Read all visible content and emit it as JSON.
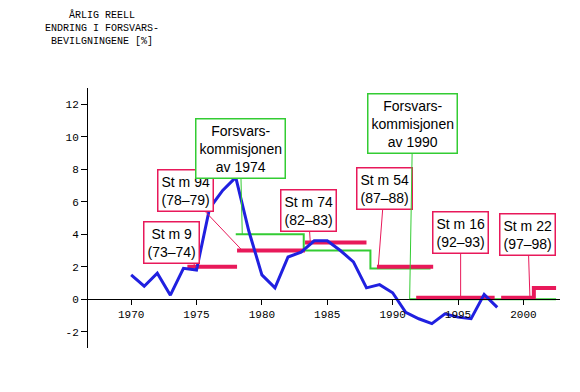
{
  "chart_data": {
    "type": "line",
    "y_label": [
      "ÅRLIG REELL",
      "ENDRING I FORSVARS-",
      "BEVILGNINGENE [%]"
    ],
    "xlim": [
      1966.7,
      2002.8
    ],
    "xticks": [
      1970,
      1975,
      1980,
      1985,
      1990,
      1995,
      2000
    ],
    "ylim": [
      -3,
      13
    ],
    "yticks": [
      -2,
      0,
      2,
      4,
      6,
      8,
      10,
      12
    ],
    "grid": false,
    "series": [
      {
        "color": "#33cc33",
        "line_style": "solid",
        "x": [
          1978,
          1983.2,
          1983.2,
          1988.3,
          1988.3,
          1992.9,
          null,
          1991.3,
          2002.5
        ],
        "values": [
          4.0,
          4.0,
          3.0,
          3.0,
          1.9,
          1.9,
          null,
          0.0,
          0.0
        ]
      },
      {
        "color": "#e8195a",
        "line_style": "solid",
        "x": [
          1974.3,
          1978.1,
          null,
          1978.1,
          1983.3,
          null,
          1983.3,
          1988.0,
          null,
          1988.8,
          1993.1,
          null,
          1991.8,
          1997.8,
          null,
          1998.3,
          2000.8,
          2000.8,
          2002.5
        ],
        "values": [
          2.0,
          2.0,
          null,
          3.0,
          3.0,
          null,
          3.5,
          3.5,
          null,
          2.0,
          2.0,
          null,
          0.1,
          0.1,
          null,
          0.1,
          0.1,
          0.7,
          0.7
        ]
      },
      {
        "color": "#2020e0",
        "line_style": "solid",
        "x": [
          1970,
          1971,
          1972,
          1973,
          1974,
          1975,
          1976,
          1977,
          1978,
          1979,
          1980,
          1981,
          1982,
          1983,
          1984,
          1985,
          1986,
          1987,
          1988,
          1989,
          1990,
          1991,
          1992,
          1993,
          1994,
          1995,
          1996,
          1997,
          1998
        ],
        "values": [
          1.5,
          0.8,
          1.6,
          0.25,
          1.9,
          1.8,
          5.6,
          6.7,
          7.5,
          4.2,
          1.5,
          0.7,
          2.6,
          2.9,
          3.6,
          3.6,
          3.0,
          2.3,
          0.7,
          0.9,
          0.4,
          -0.8,
          -1.2,
          -1.5,
          -0.9,
          -1.1,
          -1.2,
          0.3,
          -0.5
        ]
      }
    ],
    "annotations": [
      {
        "text": [
          "St m 9",
          "(73–74)"
        ],
        "x": 1975,
        "y": 2.0,
        "color": "#e8195a"
      },
      {
        "text": [
          "St m 94",
          "(78–79)"
        ],
        "x": 1978.5,
        "y": 3.0,
        "color": "#e8195a"
      },
      {
        "text": [
          "Forsvars-",
          "kommisjonen",
          "av 1974"
        ],
        "x": 1978.5,
        "y": 4.0,
        "color": "#33cc33"
      },
      {
        "text": [
          "St m 74",
          "(82–83)"
        ],
        "x": 1983.7,
        "y": 3.5,
        "color": "#e8195a"
      },
      {
        "text": [
          "St m 54",
          "(87–88)"
        ],
        "x": 1988.9,
        "y": 2.0,
        "color": "#e8195a"
      },
      {
        "text": [
          "Forsvars-",
          "kommisjonen",
          "av 1990"
        ],
        "x": 1991.3,
        "y": 0.0,
        "color": "#33cc33"
      },
      {
        "text": [
          "St m 16",
          "(92–93)"
        ],
        "x": 1995.2,
        "y": 0.1,
        "color": "#e8195a"
      },
      {
        "text": [
          "St m 22",
          "(97–98)"
        ],
        "x": 2000.5,
        "y": 0.1,
        "color": "#e8195a"
      }
    ]
  }
}
